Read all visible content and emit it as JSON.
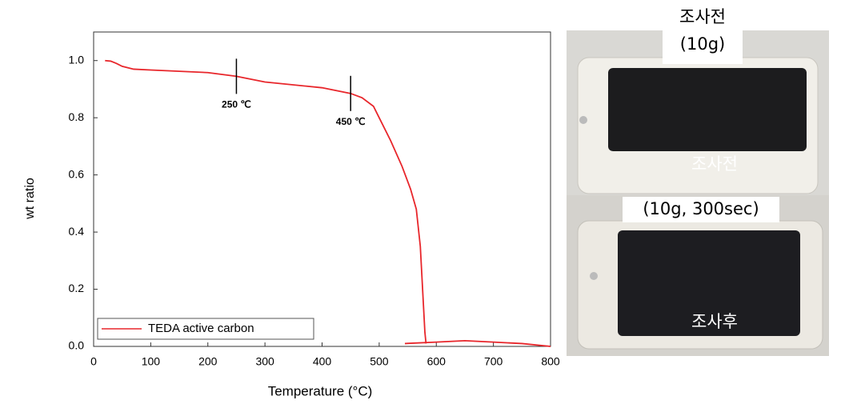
{
  "chart_data": {
    "type": "line",
    "x_label": "Temperature (°C)",
    "y_label": "wt ratio",
    "x": [
      20,
      30,
      40,
      50,
      70,
      100,
      200,
      250,
      300,
      400,
      450,
      470,
      490,
      500,
      520,
      540,
      555,
      565,
      572,
      576,
      580,
      582,
      583,
      545,
      600,
      650,
      700,
      750,
      800
    ],
    "series": [
      {
        "name": "TEDA active carbon",
        "color": "#e8262b",
        "values": [
          1.0,
          0.998,
          0.99,
          0.98,
          0.97,
          0.967,
          0.958,
          0.945,
          0.925,
          0.905,
          0.885,
          0.87,
          0.84,
          0.8,
          0.72,
          0.63,
          0.55,
          0.48,
          0.35,
          0.2,
          0.05,
          0.01,
          null,
          0.01,
          0.015,
          0.02,
          0.015,
          0.01,
          0.0
        ]
      }
    ],
    "xlim": [
      0,
      800
    ],
    "xticks": [
      0,
      100,
      200,
      300,
      400,
      500,
      600,
      700,
      800
    ],
    "ylim": [
      0,
      1.1
    ],
    "yticks": [
      {
        "value": 0,
        "label": "0.0"
      },
      {
        "value": 0.2,
        "label": "0.2"
      },
      {
        "value": 0.4,
        "label": "0.4"
      },
      {
        "value": 0.6,
        "label": "0.6"
      },
      {
        "value": 0.8,
        "label": "0.8"
      },
      {
        "value": 1,
        "label": "1.0"
      }
    ],
    "annotations": [
      {
        "text": "250 ℃",
        "x": 250
      },
      {
        "text": "450 ℃",
        "x": 450
      }
    ],
    "legend": "lower left"
  },
  "photos": {
    "top_title": "조사전",
    "top_subtitle": "(10g)",
    "top_label": "조사전",
    "bottom_title": "(10g,  300sec)",
    "bottom_label": "조사후"
  }
}
